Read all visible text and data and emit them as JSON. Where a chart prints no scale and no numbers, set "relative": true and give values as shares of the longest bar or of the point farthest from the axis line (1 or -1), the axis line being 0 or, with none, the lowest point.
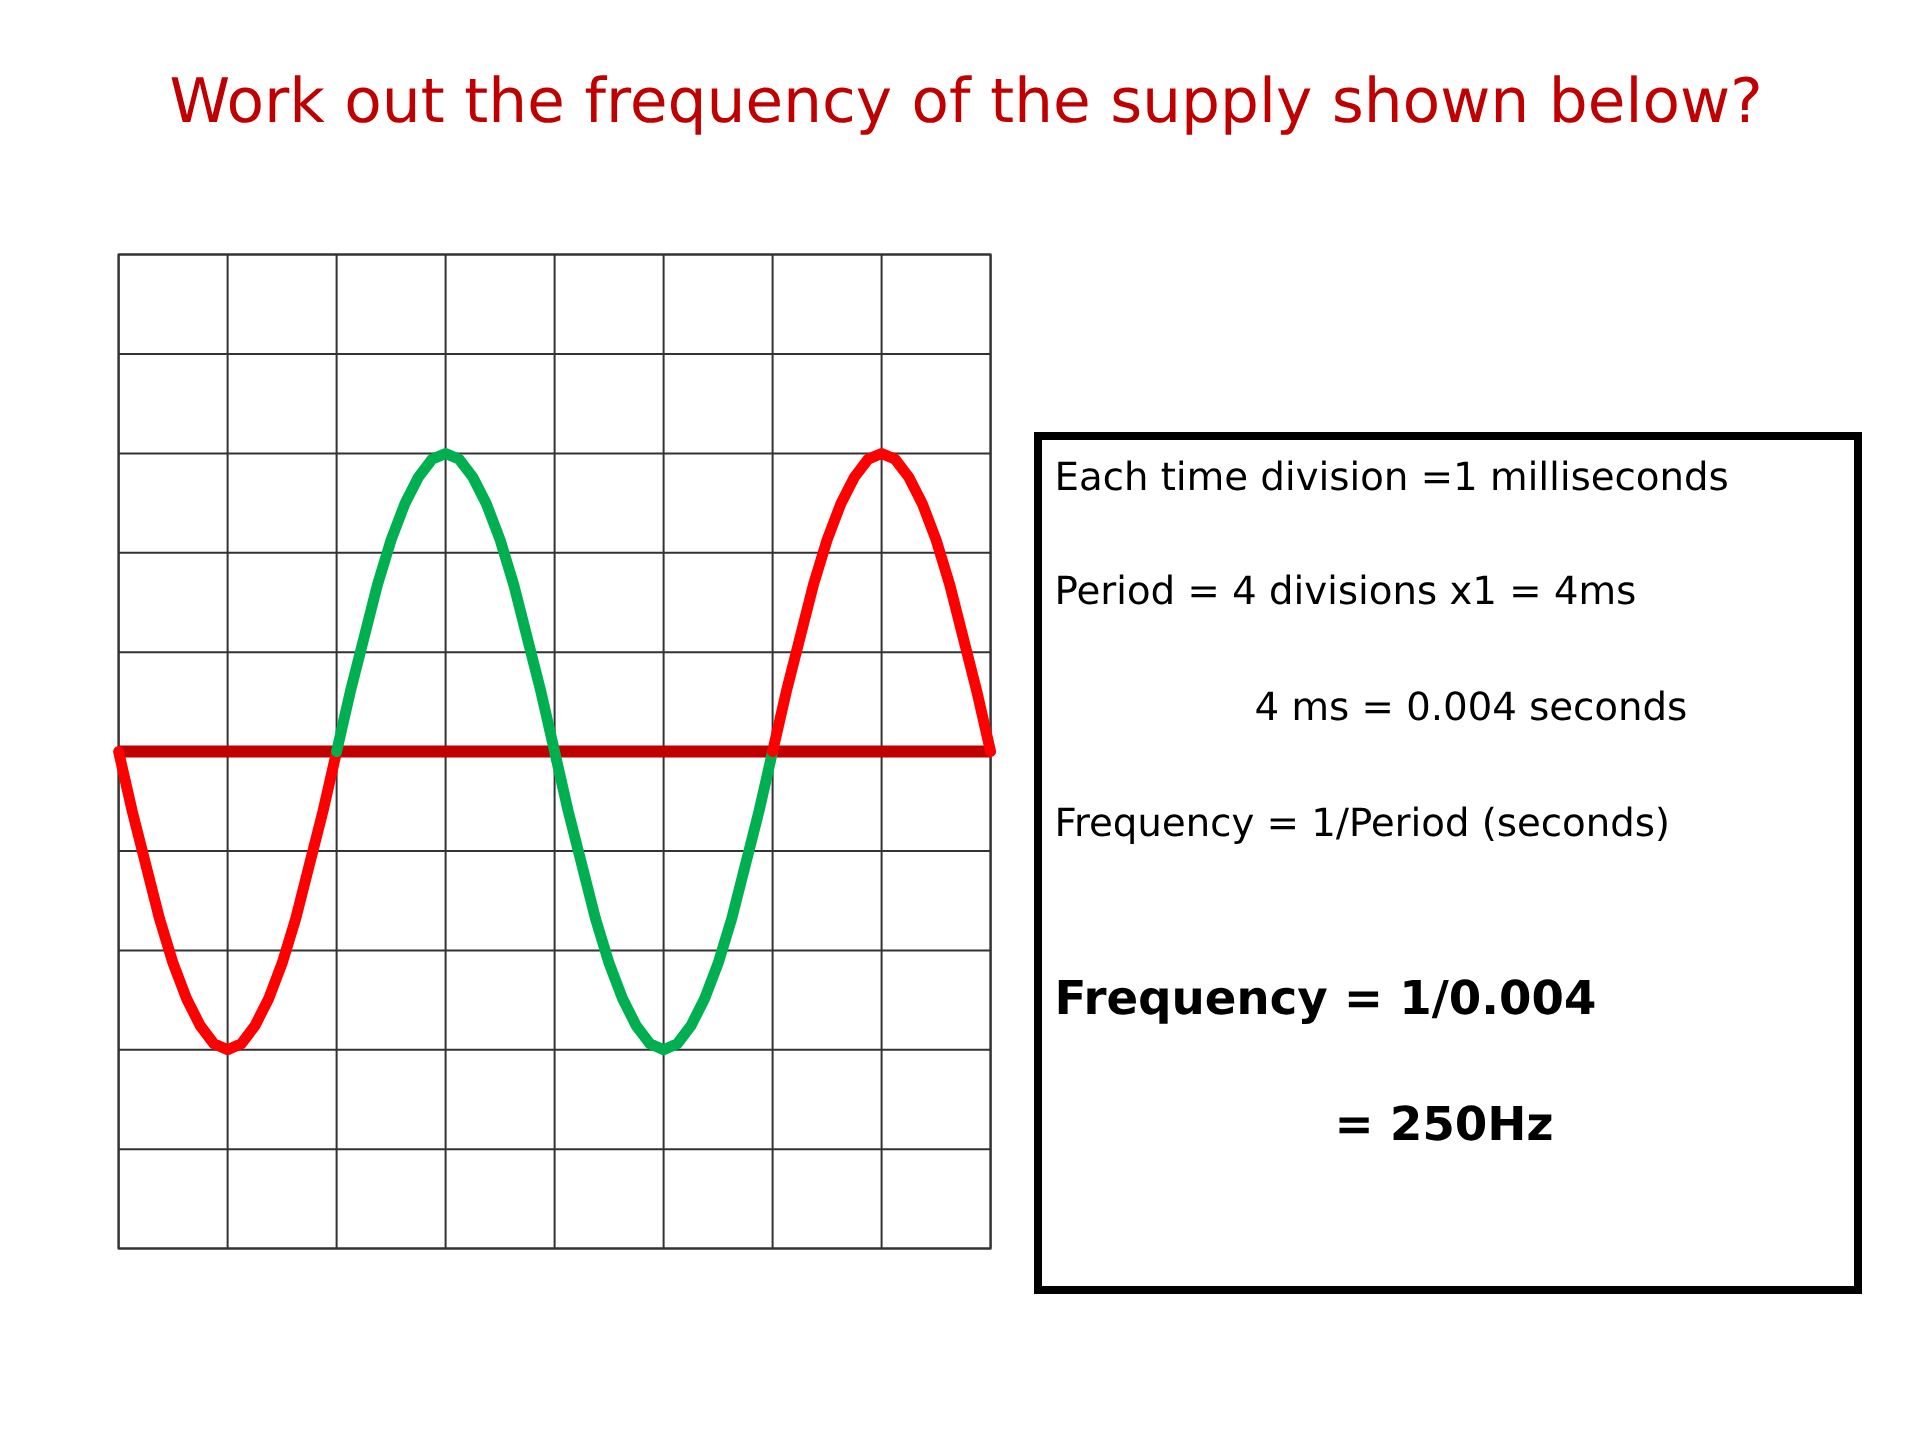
{
  "chart_data": {
    "type": "line",
    "title": "Work out the frequency of the supply shown below?",
    "annotations": [
      "Each time division =1 milliseconds",
      "Period = 4 divisions x1 = 4ms",
      "4 ms = 0.004 seconds",
      "Frequency = 1/Period (seconds)",
      "Frequency = 1/0.004",
      "= 250Hz"
    ],
    "categories": [
      null,
      null,
      null,
      null,
      null,
      null,
      null,
      null,
      null,
      null,
      null,
      null,
      null,
      null,
      null,
      null,
      null,
      null,
      null,
      null,
      null,
      null,
      null,
      null,
      null,
      null,
      null,
      null,
      null,
      null,
      null,
      null,
      null,
      null,
      null,
      null,
      null,
      null,
      null,
      null,
      null,
      null,
      null,
      null,
      null,
      null,
      null,
      null,
      null,
      null,
      null,
      null,
      null,
      null,
      null,
      null,
      null,
      null,
      null,
      null,
      null,
      null,
      null,
      null,
      null
    ],
    "relative": true,
    "grid": true,
    "ref_lines": [
      {
        "axis": "y",
        "value": 0,
        "color": "#c00000"
      }
    ],
    "series": [
      {
        "color": "#ff0000",
        "values": [
          0,
          -0.2,
          -0.38,
          -0.56,
          -0.71,
          -0.83,
          -0.92,
          -0.98,
          -1,
          -0.98,
          -0.92,
          -0.83,
          -0.71,
          -0.56,
          -0.38,
          -0.2,
          0,
          null,
          null,
          null,
          null,
          null,
          null,
          null,
          null,
          null,
          null,
          null,
          null,
          null,
          null,
          null,
          null,
          null,
          null,
          null,
          null,
          null,
          null,
          null,
          null,
          null,
          null,
          null,
          null,
          null,
          null,
          null,
          null,
          null,
          null,
          null,
          null,
          null,
          null,
          null,
          null,
          null,
          null,
          null,
          null,
          null,
          null,
          null,
          null
        ]
      },
      {
        "color": "#00b050",
        "values": [
          null,
          null,
          null,
          null,
          null,
          null,
          null,
          null,
          null,
          null,
          null,
          null,
          null,
          null,
          null,
          null,
          0,
          0.2,
          0.38,
          0.56,
          0.71,
          0.83,
          0.92,
          0.98,
          1,
          0.98,
          0.92,
          0.83,
          0.71,
          0.56,
          0.38,
          0.2,
          0,
          -0.2,
          -0.38,
          -0.56,
          -0.71,
          -0.83,
          -0.92,
          -0.98,
          -1,
          -0.98,
          -0.92,
          -0.83,
          -0.71,
          -0.56,
          -0.38,
          -0.2,
          0,
          null,
          null,
          null,
          null,
          null,
          null,
          null,
          null,
          null,
          null,
          null,
          null,
          null,
          null,
          null,
          null
        ]
      },
      {
        "color": "#ff0000",
        "values": [
          null,
          null,
          null,
          null,
          null,
          null,
          null,
          null,
          null,
          null,
          null,
          null,
          null,
          null,
          null,
          null,
          null,
          null,
          null,
          null,
          null,
          null,
          null,
          null,
          null,
          null,
          null,
          null,
          null,
          null,
          null,
          null,
          null,
          null,
          null,
          null,
          null,
          null,
          null,
          null,
          null,
          null,
          null,
          null,
          null,
          null,
          null,
          null,
          0,
          0.2,
          0.38,
          0.56,
          0.71,
          0.83,
          0.92,
          0.98,
          1,
          0.98,
          0.92,
          0.83,
          0.71,
          0.56,
          0.38,
          0.2,
          0
        ]
      }
    ]
  }
}
